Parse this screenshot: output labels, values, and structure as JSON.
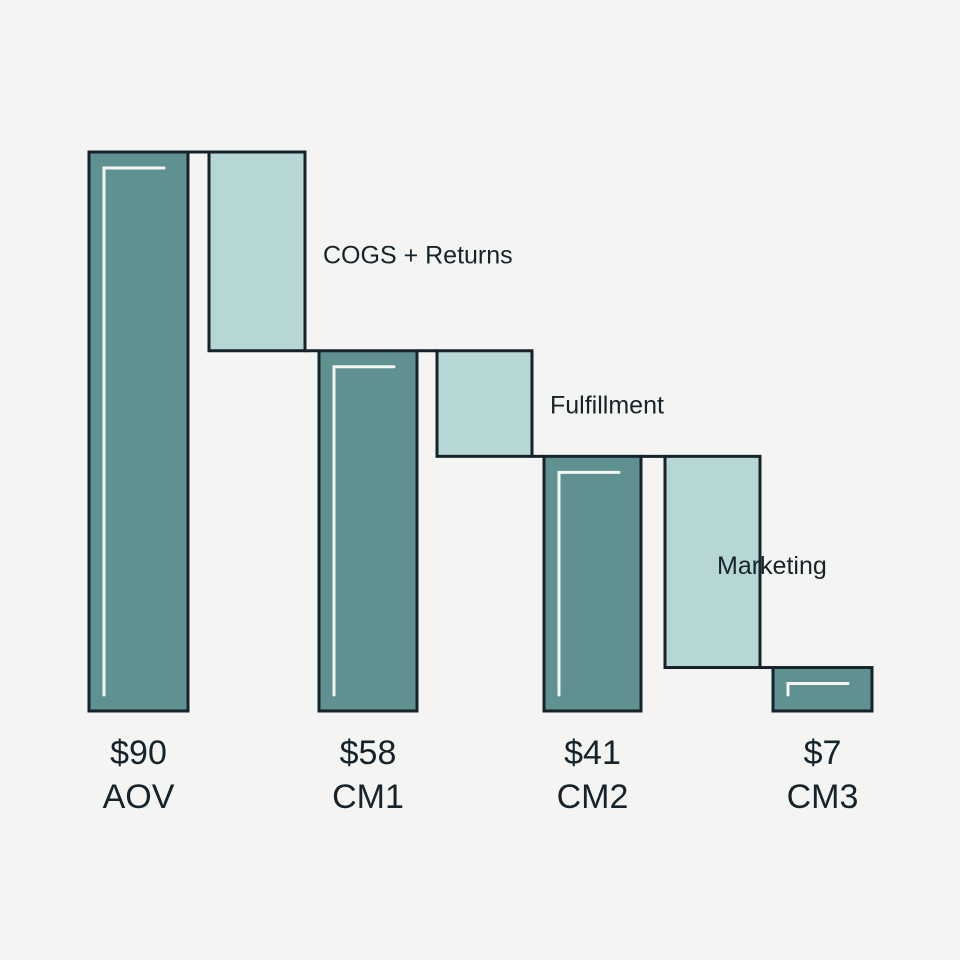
{
  "chart_data": {
    "type": "bar",
    "subtype": "waterfall",
    "title": "",
    "xlabel": "",
    "ylabel": "",
    "ylim": [
      0,
      90
    ],
    "grid": false,
    "legend": "none",
    "steps": [
      {
        "kind": "total",
        "value": 90,
        "value_label": "$90",
        "name": "AOV"
      },
      {
        "kind": "decrease",
        "from": 90,
        "to": 58,
        "label": "COGS + Returns"
      },
      {
        "kind": "total",
        "value": 58,
        "value_label": "$58",
        "name": "CM1"
      },
      {
        "kind": "decrease",
        "from": 58,
        "to": 41,
        "label": "Fulfillment"
      },
      {
        "kind": "total",
        "value": 41,
        "value_label": "$41",
        "name": "CM2"
      },
      {
        "kind": "decrease",
        "from": 41,
        "to": 7,
        "label": "Marketing"
      },
      {
        "kind": "total",
        "value": 7,
        "value_label": "$7",
        "name": "CM3"
      }
    ],
    "colors": {
      "total_fill": "#5e9190",
      "decrease_fill": "#b7d6d6",
      "outline": "#17232b",
      "highlight": "#f4f5f3",
      "background": "#f4f5f3"
    }
  }
}
